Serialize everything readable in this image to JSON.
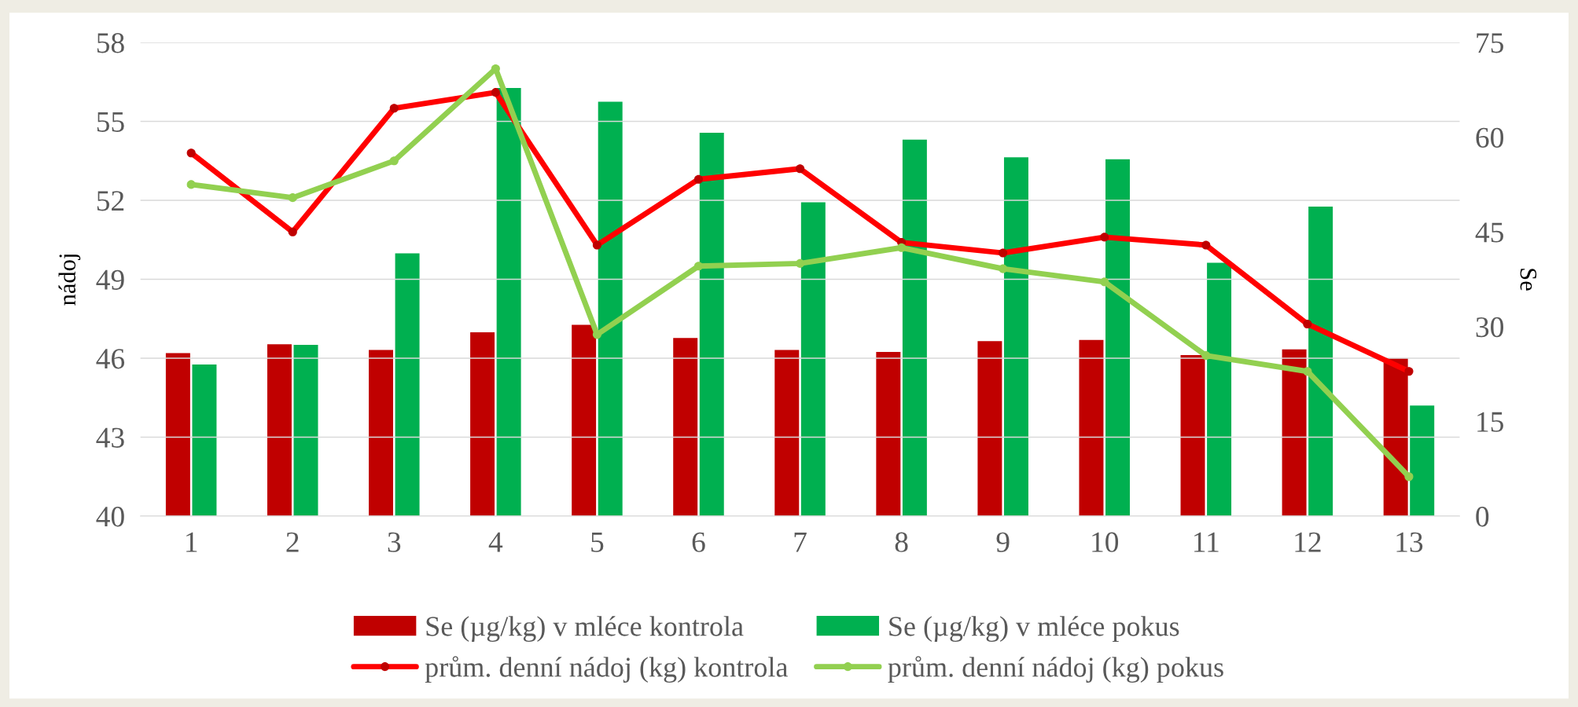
{
  "chart_data": {
    "type": "bar",
    "categories": [
      "1",
      "2",
      "3",
      "4",
      "5",
      "6",
      "7",
      "8",
      "9",
      "10",
      "11",
      "12",
      "13"
    ],
    "ylabel": "nádoj",
    "y2label": "Se",
    "ylim": [
      40,
      58
    ],
    "yticks": [
      40,
      43,
      46,
      49,
      52,
      55,
      58
    ],
    "y2lim": [
      0,
      75
    ],
    "y2ticks": [
      0,
      15,
      30,
      45,
      60,
      75
    ],
    "grid": "y",
    "legend": "bottom",
    "marker": "circle",
    "series": [
      {
        "name": "Se (µg/kg) v mléce kontrola",
        "axis": "y2",
        "color": "#c00000",
        "values": [
          25.8,
          27.2,
          26.3,
          29.1,
          30.3,
          28.2,
          26.3,
          26.0,
          27.7,
          27.9,
          25.5,
          26.4,
          25.0
        ]
      },
      {
        "name": "Se (µg/kg) v mléce pokus",
        "axis": "y2",
        "color": "#00b050",
        "values": [
          24.0,
          27.1,
          41.6,
          67.8,
          65.6,
          60.7,
          49.7,
          59.6,
          56.8,
          56.5,
          40.1,
          49.0,
          17.5
        ]
      },
      {
        "name": "prům. denní nádoj (kg) kontrola",
        "type": "line",
        "axis": "y",
        "color": "#ff0000",
        "values": [
          53.8,
          50.8,
          55.5,
          56.1,
          50.3,
          52.8,
          53.2,
          50.4,
          50.0,
          50.6,
          50.3,
          47.3,
          45.5
        ]
      },
      {
        "name": "prům. denní nádoj (kg) pokus",
        "type": "line",
        "axis": "y",
        "color": "#92d050",
        "values": [
          52.6,
          52.1,
          53.5,
          57.0,
          46.9,
          49.5,
          49.6,
          50.2,
          49.4,
          48.9,
          46.1,
          45.5,
          41.5
        ]
      }
    ]
  }
}
